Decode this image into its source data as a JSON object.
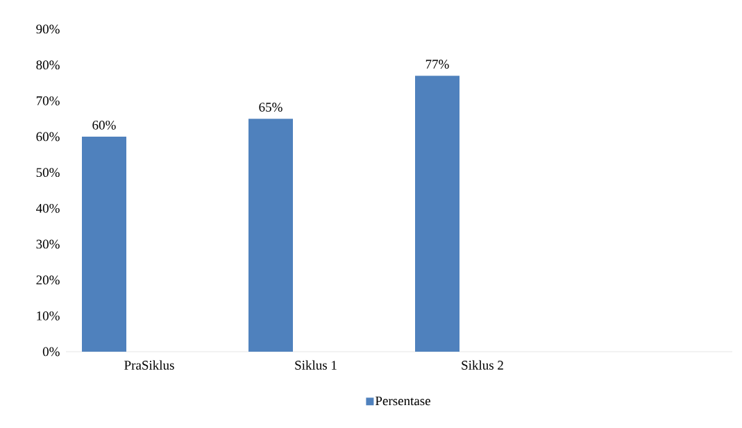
{
  "chart_data": {
    "type": "bar",
    "categories": [
      "PraSiklus",
      "Siklus 1",
      "Siklus 2",
      null
    ],
    "series": [
      {
        "name": "Persentase",
        "color": "#4f81bd",
        "values": [
          60,
          65,
          77,
          null
        ],
        "value_labels": [
          "60%",
          "65%",
          "77%",
          null
        ]
      }
    ],
    "ylim": [
      0,
      90
    ],
    "yticks": [
      {
        "value": 0,
        "label": "0%"
      },
      {
        "value": 10,
        "label": "10%"
      },
      {
        "value": 20,
        "label": "20%"
      },
      {
        "value": 30,
        "label": "30%"
      },
      {
        "value": 40,
        "label": "40%"
      },
      {
        "value": 50,
        "label": "50%"
      },
      {
        "value": 60,
        "label": "60%"
      },
      {
        "value": 70,
        "label": "70%"
      },
      {
        "value": 80,
        "label": "80%"
      },
      {
        "value": 90,
        "label": "90%"
      }
    ],
    "grid": false,
    "legend": "bottom"
  }
}
